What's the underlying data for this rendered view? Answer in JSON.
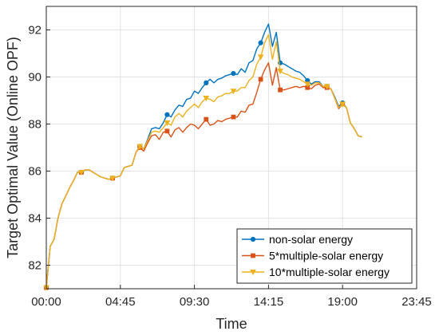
{
  "chart_data": {
    "type": "line",
    "xlabel": "Time",
    "ylabel": "Target Optimal Value (Online OPF)",
    "xlim": [
      0,
      95
    ],
    "ylim": [
      81,
      93
    ],
    "x_ticks": [
      {
        "value": 0,
        "label": "00:00"
      },
      {
        "value": 19,
        "label": "04:45"
      },
      {
        "value": 38,
        "label": "09:30"
      },
      {
        "value": 57,
        "label": "14:15"
      },
      {
        "value": 76,
        "label": "19:00"
      },
      {
        "value": 95,
        "label": "23:45"
      }
    ],
    "y_ticks": [
      82,
      84,
      86,
      88,
      90,
      92
    ],
    "grid": true,
    "legend_position": "bottom-right",
    "series": [
      {
        "name": "non-solar energy",
        "color": "#0072BD",
        "marker": "circle",
        "points": [
          [
            0,
            81.05
          ],
          [
            1,
            82.8
          ],
          [
            2,
            83.1
          ],
          [
            3,
            84.0
          ],
          [
            4,
            84.6
          ],
          [
            5,
            84.95
          ],
          [
            6,
            85.3
          ],
          [
            7,
            85.6
          ],
          [
            8,
            85.95
          ],
          [
            9,
            85.95
          ],
          [
            10,
            86.05
          ],
          [
            11,
            86.05
          ],
          [
            12,
            85.95
          ],
          [
            13,
            85.85
          ],
          [
            14,
            85.75
          ],
          [
            15,
            85.7
          ],
          [
            16,
            85.65
          ],
          [
            17,
            85.7
          ],
          [
            18,
            85.75
          ],
          [
            19,
            85.8
          ],
          [
            20,
            86.15
          ],
          [
            21,
            86.2
          ],
          [
            22,
            86.25
          ],
          [
            23,
            86.8
          ],
          [
            24,
            87.05
          ],
          [
            25,
            86.95
          ],
          [
            26,
            87.35
          ],
          [
            27,
            87.8
          ],
          [
            28,
            87.85
          ],
          [
            29,
            87.8
          ],
          [
            30,
            88.05
          ],
          [
            31,
            88.4
          ],
          [
            32,
            88.3
          ],
          [
            33,
            88.6
          ],
          [
            34,
            88.8
          ],
          [
            35,
            88.75
          ],
          [
            36,
            89.05
          ],
          [
            37,
            89.1
          ],
          [
            38,
            89.4
          ],
          [
            39,
            89.3
          ],
          [
            40,
            89.55
          ],
          [
            41,
            89.75
          ],
          [
            42,
            89.9
          ],
          [
            43,
            89.75
          ],
          [
            44,
            89.9
          ],
          [
            45,
            89.95
          ],
          [
            46,
            90.05
          ],
          [
            47,
            90.1
          ],
          [
            48,
            90.15
          ],
          [
            49,
            90.1
          ],
          [
            50,
            90.35
          ],
          [
            51,
            90.2
          ],
          [
            52,
            90.6
          ],
          [
            53,
            90.7
          ],
          [
            54,
            91.2
          ],
          [
            55,
            91.45
          ],
          [
            56,
            91.9
          ],
          [
            57,
            92.25
          ],
          [
            58,
            91.3
          ],
          [
            59,
            91.9
          ],
          [
            60,
            90.6
          ],
          [
            61,
            90.55
          ],
          [
            62,
            90.45
          ],
          [
            63,
            90.35
          ],
          [
            64,
            90.25
          ],
          [
            65,
            90.2
          ],
          [
            66,
            90.05
          ],
          [
            67,
            89.85
          ],
          [
            68,
            89.7
          ],
          [
            69,
            89.8
          ],
          [
            70,
            89.8
          ],
          [
            71,
            89.6
          ],
          [
            72,
            89.6
          ],
          [
            73,
            89.5
          ],
          [
            74,
            89.15
          ],
          [
            75,
            88.75
          ],
          [
            76,
            88.9
          ],
          [
            77,
            88.7
          ],
          [
            78,
            88.05
          ],
          [
            79,
            87.8
          ],
          [
            80,
            87.5
          ],
          [
            81,
            87.45
          ]
        ]
      },
      {
        "name": "5*multiple-solar energy",
        "color": "#D95319",
        "marker": "square",
        "points": [
          [
            0,
            81.05
          ],
          [
            1,
            82.8
          ],
          [
            2,
            83.1
          ],
          [
            3,
            84.0
          ],
          [
            4,
            84.6
          ],
          [
            5,
            84.95
          ],
          [
            6,
            85.3
          ],
          [
            7,
            85.6
          ],
          [
            8,
            85.95
          ],
          [
            9,
            85.95
          ],
          [
            10,
            86.05
          ],
          [
            11,
            86.05
          ],
          [
            12,
            85.95
          ],
          [
            13,
            85.85
          ],
          [
            14,
            85.75
          ],
          [
            15,
            85.7
          ],
          [
            16,
            85.65
          ],
          [
            17,
            85.7
          ],
          [
            18,
            85.75
          ],
          [
            19,
            85.8
          ],
          [
            20,
            86.15
          ],
          [
            21,
            86.2
          ],
          [
            22,
            86.25
          ],
          [
            23,
            86.8
          ],
          [
            24,
            87.0
          ],
          [
            25,
            86.85
          ],
          [
            26,
            87.2
          ],
          [
            27,
            87.5
          ],
          [
            28,
            87.55
          ],
          [
            29,
            87.35
          ],
          [
            30,
            87.65
          ],
          [
            31,
            87.7
          ],
          [
            32,
            87.45
          ],
          [
            33,
            87.75
          ],
          [
            34,
            87.85
          ],
          [
            35,
            87.65
          ],
          [
            36,
            87.85
          ],
          [
            37,
            88.0
          ],
          [
            38,
            87.95
          ],
          [
            39,
            87.8
          ],
          [
            40,
            88.0
          ],
          [
            41,
            88.2
          ],
          [
            42,
            87.95
          ],
          [
            43,
            88.0
          ],
          [
            44,
            88.15
          ],
          [
            45,
            88.1
          ],
          [
            46,
            88.2
          ],
          [
            47,
            88.25
          ],
          [
            48,
            88.3
          ],
          [
            49,
            88.3
          ],
          [
            50,
            88.55
          ],
          [
            51,
            88.5
          ],
          [
            52,
            88.8
          ],
          [
            53,
            88.85
          ],
          [
            54,
            89.35
          ],
          [
            55,
            89.9
          ],
          [
            56,
            90.3
          ],
          [
            57,
            90.6
          ],
          [
            58,
            89.65
          ],
          [
            59,
            90.4
          ],
          [
            60,
            89.45
          ],
          [
            61,
            89.45
          ],
          [
            62,
            89.5
          ],
          [
            63,
            89.55
          ],
          [
            64,
            89.6
          ],
          [
            65,
            89.55
          ],
          [
            66,
            89.6
          ],
          [
            67,
            89.55
          ],
          [
            68,
            89.5
          ],
          [
            69,
            89.65
          ],
          [
            70,
            89.7
          ],
          [
            71,
            89.55
          ],
          [
            72,
            89.55
          ],
          [
            73,
            89.5
          ],
          [
            74,
            89.1
          ],
          [
            75,
            88.65
          ],
          [
            76,
            88.85
          ],
          [
            77,
            88.7
          ],
          [
            78,
            88.05
          ],
          [
            79,
            87.8
          ],
          [
            80,
            87.5
          ],
          [
            81,
            87.45
          ]
        ]
      },
      {
        "name": "10*multiple-solar energy",
        "color": "#EDB120",
        "marker": "triangle",
        "points": [
          [
            0,
            81.05
          ],
          [
            1,
            82.8
          ],
          [
            2,
            83.1
          ],
          [
            3,
            84.0
          ],
          [
            4,
            84.6
          ],
          [
            5,
            84.95
          ],
          [
            6,
            85.3
          ],
          [
            7,
            85.6
          ],
          [
            8,
            85.95
          ],
          [
            9,
            85.95
          ],
          [
            10,
            86.05
          ],
          [
            11,
            86.05
          ],
          [
            12,
            85.95
          ],
          [
            13,
            85.85
          ],
          [
            14,
            85.75
          ],
          [
            15,
            85.7
          ],
          [
            16,
            85.65
          ],
          [
            17,
            85.7
          ],
          [
            18,
            85.75
          ],
          [
            19,
            85.8
          ],
          [
            20,
            86.15
          ],
          [
            21,
            86.2
          ],
          [
            22,
            86.25
          ],
          [
            23,
            86.8
          ],
          [
            24,
            87.05
          ],
          [
            25,
            86.95
          ],
          [
            26,
            87.3
          ],
          [
            27,
            87.65
          ],
          [
            28,
            87.7
          ],
          [
            29,
            87.65
          ],
          [
            30,
            87.85
          ],
          [
            31,
            88.05
          ],
          [
            32,
            87.95
          ],
          [
            33,
            88.3
          ],
          [
            34,
            88.45
          ],
          [
            35,
            88.3
          ],
          [
            36,
            88.55
          ],
          [
            37,
            88.7
          ],
          [
            38,
            88.85
          ],
          [
            39,
            88.7
          ],
          [
            40,
            88.95
          ],
          [
            41,
            89.1
          ],
          [
            42,
            89.05
          ],
          [
            43,
            88.95
          ],
          [
            44,
            89.15
          ],
          [
            45,
            89.2
          ],
          [
            46,
            89.3
          ],
          [
            47,
            89.3
          ],
          [
            48,
            89.4
          ],
          [
            49,
            89.4
          ],
          [
            50,
            89.55
          ],
          [
            51,
            89.55
          ],
          [
            52,
            89.85
          ],
          [
            53,
            90.0
          ],
          [
            54,
            90.55
          ],
          [
            55,
            90.85
          ],
          [
            56,
            91.45
          ],
          [
            57,
            91.8
          ],
          [
            58,
            90.75
          ],
          [
            59,
            91.5
          ],
          [
            60,
            90.25
          ],
          [
            61,
            90.15
          ],
          [
            62,
            90.1
          ],
          [
            63,
            90.0
          ],
          [
            64,
            89.95
          ],
          [
            65,
            89.9
          ],
          [
            66,
            89.8
          ],
          [
            67,
            89.7
          ],
          [
            68,
            89.65
          ],
          [
            69,
            89.75
          ],
          [
            70,
            89.75
          ],
          [
            71,
            89.6
          ],
          [
            72,
            89.6
          ],
          [
            73,
            89.5
          ],
          [
            74,
            89.1
          ],
          [
            75,
            88.7
          ],
          [
            76,
            88.85
          ],
          [
            77,
            88.7
          ],
          [
            78,
            88.05
          ],
          [
            79,
            87.8
          ],
          [
            80,
            87.5
          ],
          [
            81,
            87.45
          ]
        ]
      }
    ]
  }
}
